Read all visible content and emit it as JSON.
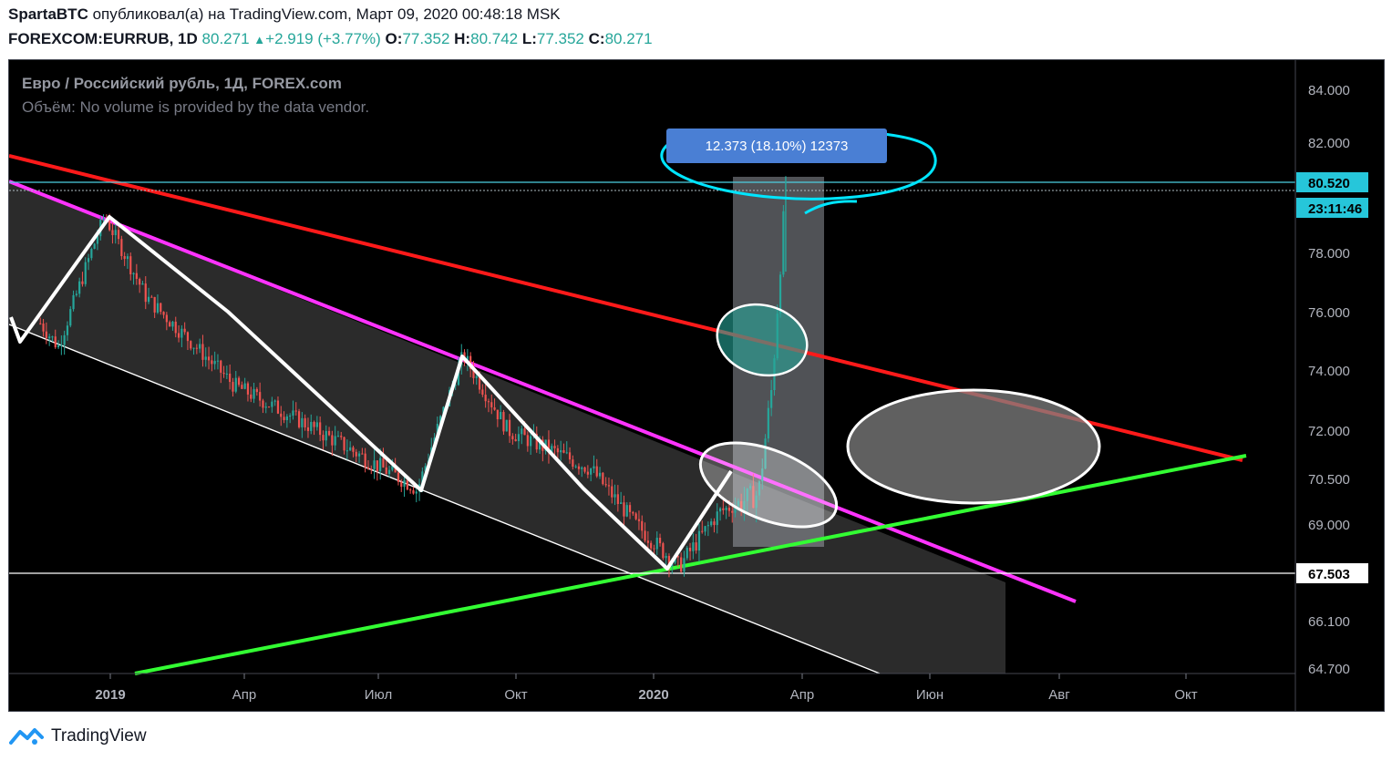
{
  "header": {
    "author": "SpartaBTC",
    "published": "опубликовал(а) на TradingView.com, Март 09, 2020 00:48:18 MSK",
    "symbol": "FOREXCOM:EURRUB, 1D",
    "last": "80.271",
    "change": "+2.919 (+3.77%)",
    "open_label": "O:",
    "open": "77.352",
    "high_label": "H:",
    "high": "80.742",
    "low_label": "L:",
    "low": "77.352",
    "close_label": "C:",
    "close": "80.271"
  },
  "footer": {
    "brand": "TradingView"
  },
  "colors": {
    "up": "#26a69a",
    "down": "#ef5350",
    "resistance": "#ff1a1a",
    "channel": "#ff33ff",
    "support": "#33ff33",
    "marker": "#00e5ff"
  },
  "chart_data": {
    "type": "candlestick",
    "title": "Евро / Российский рубль, 1Д, FOREX.com",
    "volume_note": "Объём: No volume is provided by the data vendor.",
    "x_ticks": [
      "2019",
      "Апр",
      "Июл",
      "Окт",
      "2020",
      "Апр",
      "Июн",
      "Авг",
      "Окт"
    ],
    "y_ticks": [
      "84.000",
      "82.000",
      "80.520",
      "78.000",
      "76.000",
      "74.000",
      "72.000",
      "70.500",
      "69.000",
      "67.503",
      "66.100",
      "64.700"
    ],
    "price_label": "80.520",
    "countdown": "23:11:46",
    "horizontal_level": "67.503",
    "measure_label": "12.373 (18.10%) 12373",
    "ylim": [
      64.7,
      84.0
    ],
    "grid": false,
    "price_path": [
      {
        "date": "2018-11-15",
        "price": 75.6
      },
      {
        "date": "2018-11-27",
        "price": 74.8
      },
      {
        "date": "2018-12-28",
        "price": 79.3
      },
      {
        "date": "2019-01-25",
        "price": 76.5
      },
      {
        "date": "2019-03-25",
        "price": 73.5
      },
      {
        "date": "2019-05-20",
        "price": 72.0
      },
      {
        "date": "2019-07-22",
        "price": 70.3
      },
      {
        "date": "2019-07-26",
        "price": 70.1
      },
      {
        "date": "2019-08-26",
        "price": 74.5
      },
      {
        "date": "2019-09-25",
        "price": 72.0
      },
      {
        "date": "2019-11-20",
        "price": 70.8
      },
      {
        "date": "2019-12-20",
        "price": 69.0
      },
      {
        "date": "2020-01-14",
        "price": 67.7
      },
      {
        "date": "2020-02-04",
        "price": 69.4
      },
      {
        "date": "2020-02-24",
        "price": 70.0
      },
      {
        "date": "2020-03-02",
        "price": 73.5
      },
      {
        "date": "2020-03-06",
        "price": 77.4
      },
      {
        "date": "2020-03-09",
        "price": 80.27
      }
    ]
  }
}
